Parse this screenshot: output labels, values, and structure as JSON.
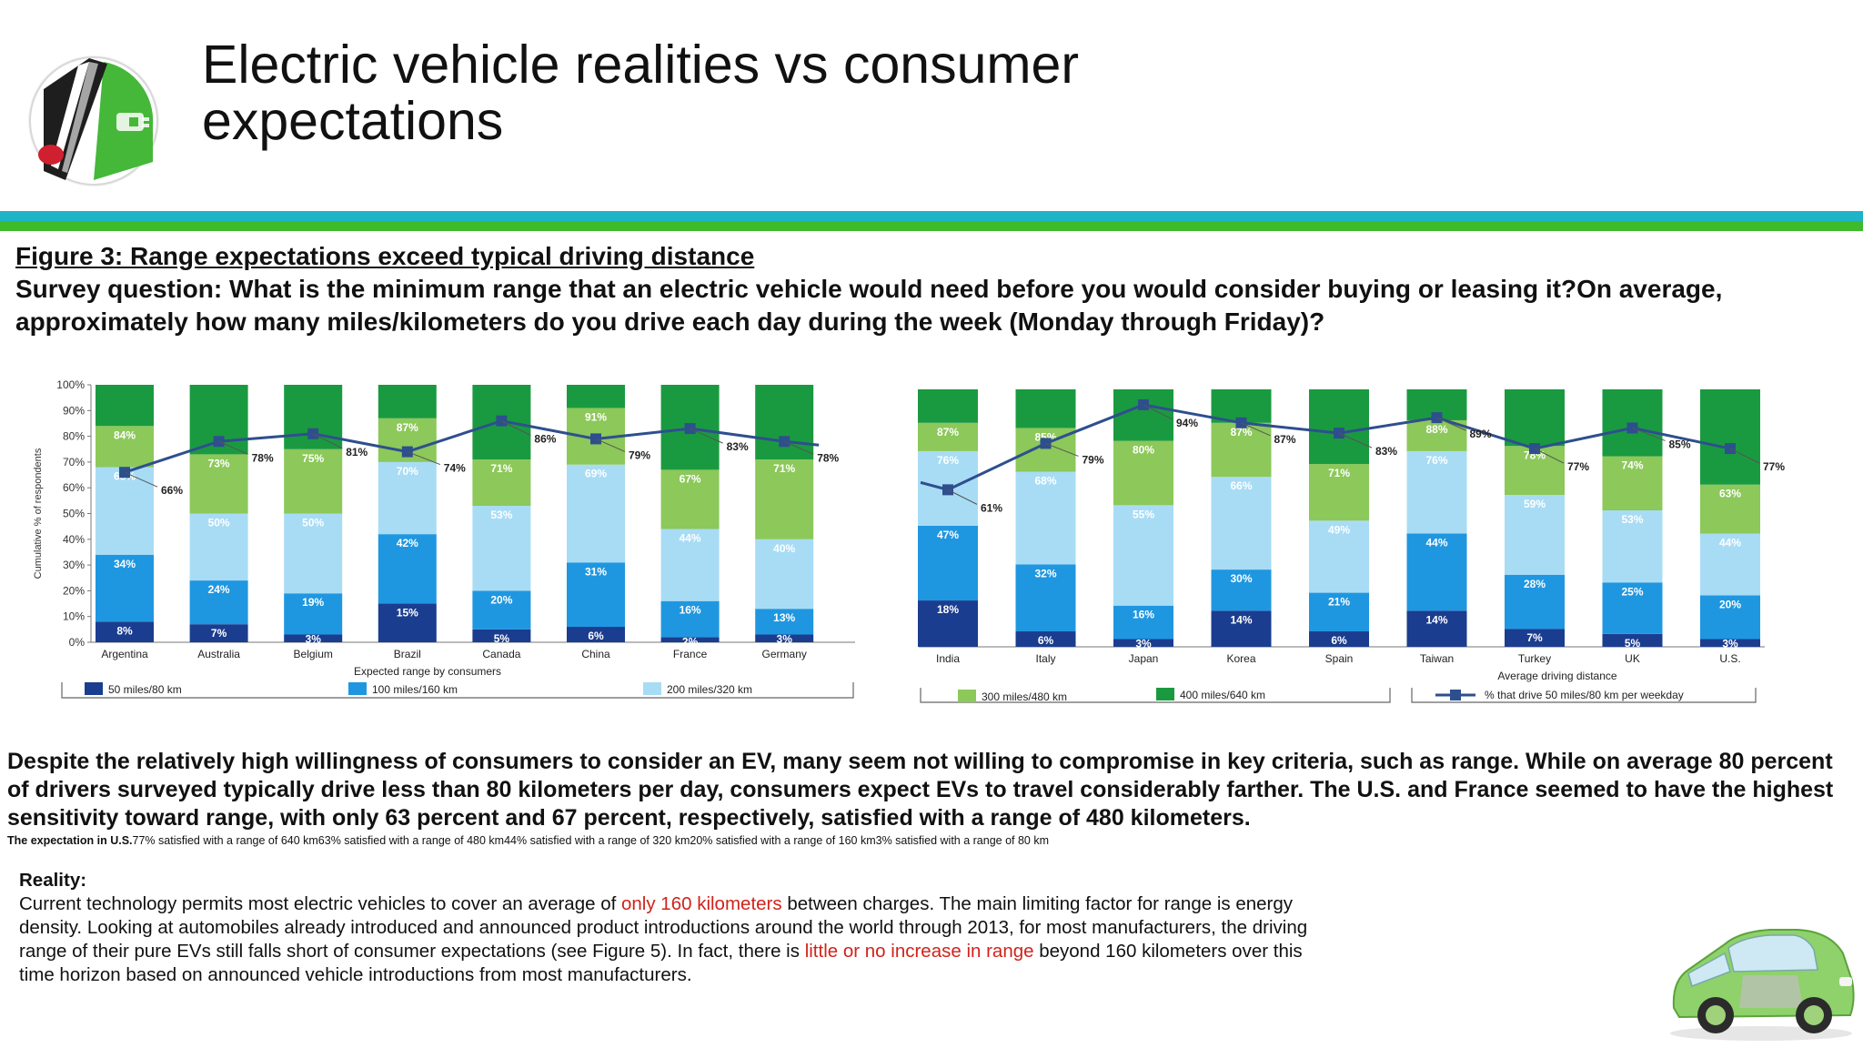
{
  "slide": {
    "title_line1": "Electric vehicle realities vs consumer",
    "title_line2": "expectations",
    "figure_caption": "Figure 3: Range expectations exceed typical driving distance",
    "survey_question": "Survey question: What is the minimum range that an electric vehicle would need before you would consider buying or leasing it?On average, approximately how many miles/kilometers do you drive each day during the week (Monday through Friday)?",
    "paragraph": "Despite the relatively high willingness of consumers to consider an EV, many seem not willing to compromise in key criteria, such as range. While on average 80 percent of drivers surveyed typically drive less than 80 kilometers per day, consumers expect EVs to travel considerably farther. The U.S. and France seemed to have the highest sensitivity toward range, with only 63 percent and 67 percent, respectively, satisfied with a range of 480 kilometers.",
    "expectation_label": "The expectation in U.S.",
    "expectation_text": "77% satisfied with a range of 640 km63% satisfied with a range of 480 km44% satisfied with a range of 320 km20% satisfied with a range of 160 km3% satisfied with a range of 80 km",
    "reality_heading": "Reality:",
    "reality_p1": "Current technology permits most electric vehicles to cover an average of ",
    "reality_red1": "only 160 kilometers",
    "reality_p2": " between charges. The main limiting factor for range is energy density. Looking at automobiles already introduced and announced product introductions around the world through 2013, for most manufacturers, the driving range of their pure EVs still falls short of consumer expectations (see Figure 5). In fact, there is ",
    "reality_red2": "little or no increase in range",
    "reality_p3": " beyond 160 kilometers over this time horizon based on announced vehicle introductions from most manufacturers.",
    "icons": [
      "ev-plug-logo-icon",
      "electric-car-icon"
    ]
  },
  "chart_data": {
    "type": "bar",
    "subtype": "stacked-cumulative-with-line",
    "ylabel": "Cumulative % of respondents",
    "xlabel_left": "Expected range by consumers",
    "xlabel_right": "Average driving distance",
    "ylim": [
      0,
      100
    ],
    "y_ticks": [
      "100%",
      "90%",
      "80%",
      "70%",
      "60%",
      "50%",
      "40%",
      "30%",
      "20%",
      "10%",
      "0%"
    ],
    "grid": false,
    "legend": [
      {
        "name": "50 miles/80 km",
        "color": "#1b3d8f"
      },
      {
        "name": "100 miles/160 km",
        "color": "#1f97e0"
      },
      {
        "name": "200 miles/320 km",
        "color": "#a8dcf5"
      },
      {
        "name": "300 miles/480 km",
        "color": "#8cc85a"
      },
      {
        "name": "400 miles/640 km",
        "color": "#1a9a40"
      },
      {
        "name": "% that drive 50 miles/80 km per weekday",
        "color": "#2e4f8e"
      }
    ],
    "categories": [
      "Argentina",
      "Australia",
      "Belgium",
      "Brazil",
      "Canada",
      "China",
      "France",
      "Germany",
      "India",
      "Italy",
      "Japan",
      "Korea",
      "Spain",
      "Taiwan",
      "Turkey",
      "UK",
      "U.S."
    ],
    "cumulative": {
      "50 miles/80 km": [
        8,
        7,
        3,
        15,
        5,
        6,
        2,
        3,
        18,
        6,
        3,
        14,
        6,
        14,
        7,
        5,
        3
      ],
      "100 miles/160 km": [
        34,
        24,
        19,
        42,
        20,
        31,
        16,
        13,
        47,
        32,
        16,
        30,
        21,
        44,
        28,
        25,
        20
      ],
      "200 miles/320 km": [
        68,
        50,
        50,
        70,
        53,
        69,
        44,
        40,
        76,
        68,
        55,
        66,
        49,
        76,
        59,
        53,
        44
      ],
      "300 miles/480 km": [
        84,
        73,
        75,
        87,
        71,
        91,
        67,
        71,
        87,
        85,
        80,
        87,
        71,
        88,
        78,
        74,
        63
      ]
    },
    "drive_50_miles_per_weekday_pct": [
      66,
      78,
      81,
      74,
      86,
      79,
      83,
      78,
      61,
      79,
      94,
      87,
      83,
      89,
      77,
      85,
      77
    ]
  }
}
